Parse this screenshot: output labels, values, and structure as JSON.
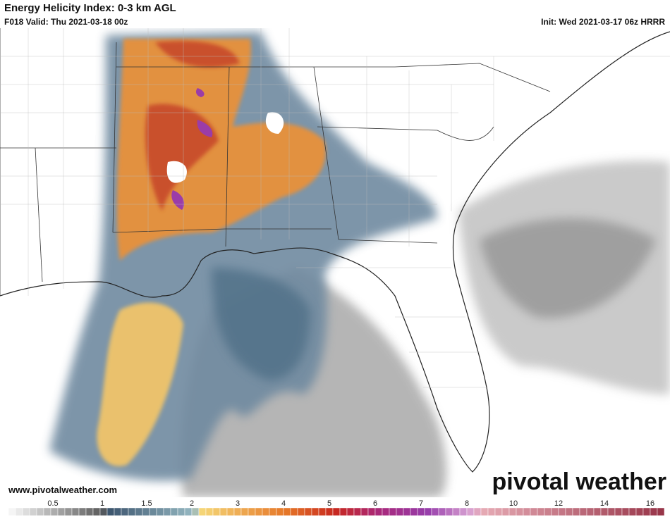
{
  "header": {
    "title": "Energy Helicity Index: 0-3 km AGL",
    "valid": "F018 Valid: Thu 2021-03-18 00z",
    "init": "Init: Wed 2021-03-17 06z HRRR"
  },
  "footer": {
    "url": "www.pivotalweather.com",
    "brand": "pivotal weather"
  },
  "colorbar": {
    "labels": [
      "0.5",
      "1",
      "1.5",
      "2",
      "3",
      "4",
      "5",
      "6",
      "7",
      "8",
      "10",
      "12",
      "14",
      "16"
    ]
  }
}
